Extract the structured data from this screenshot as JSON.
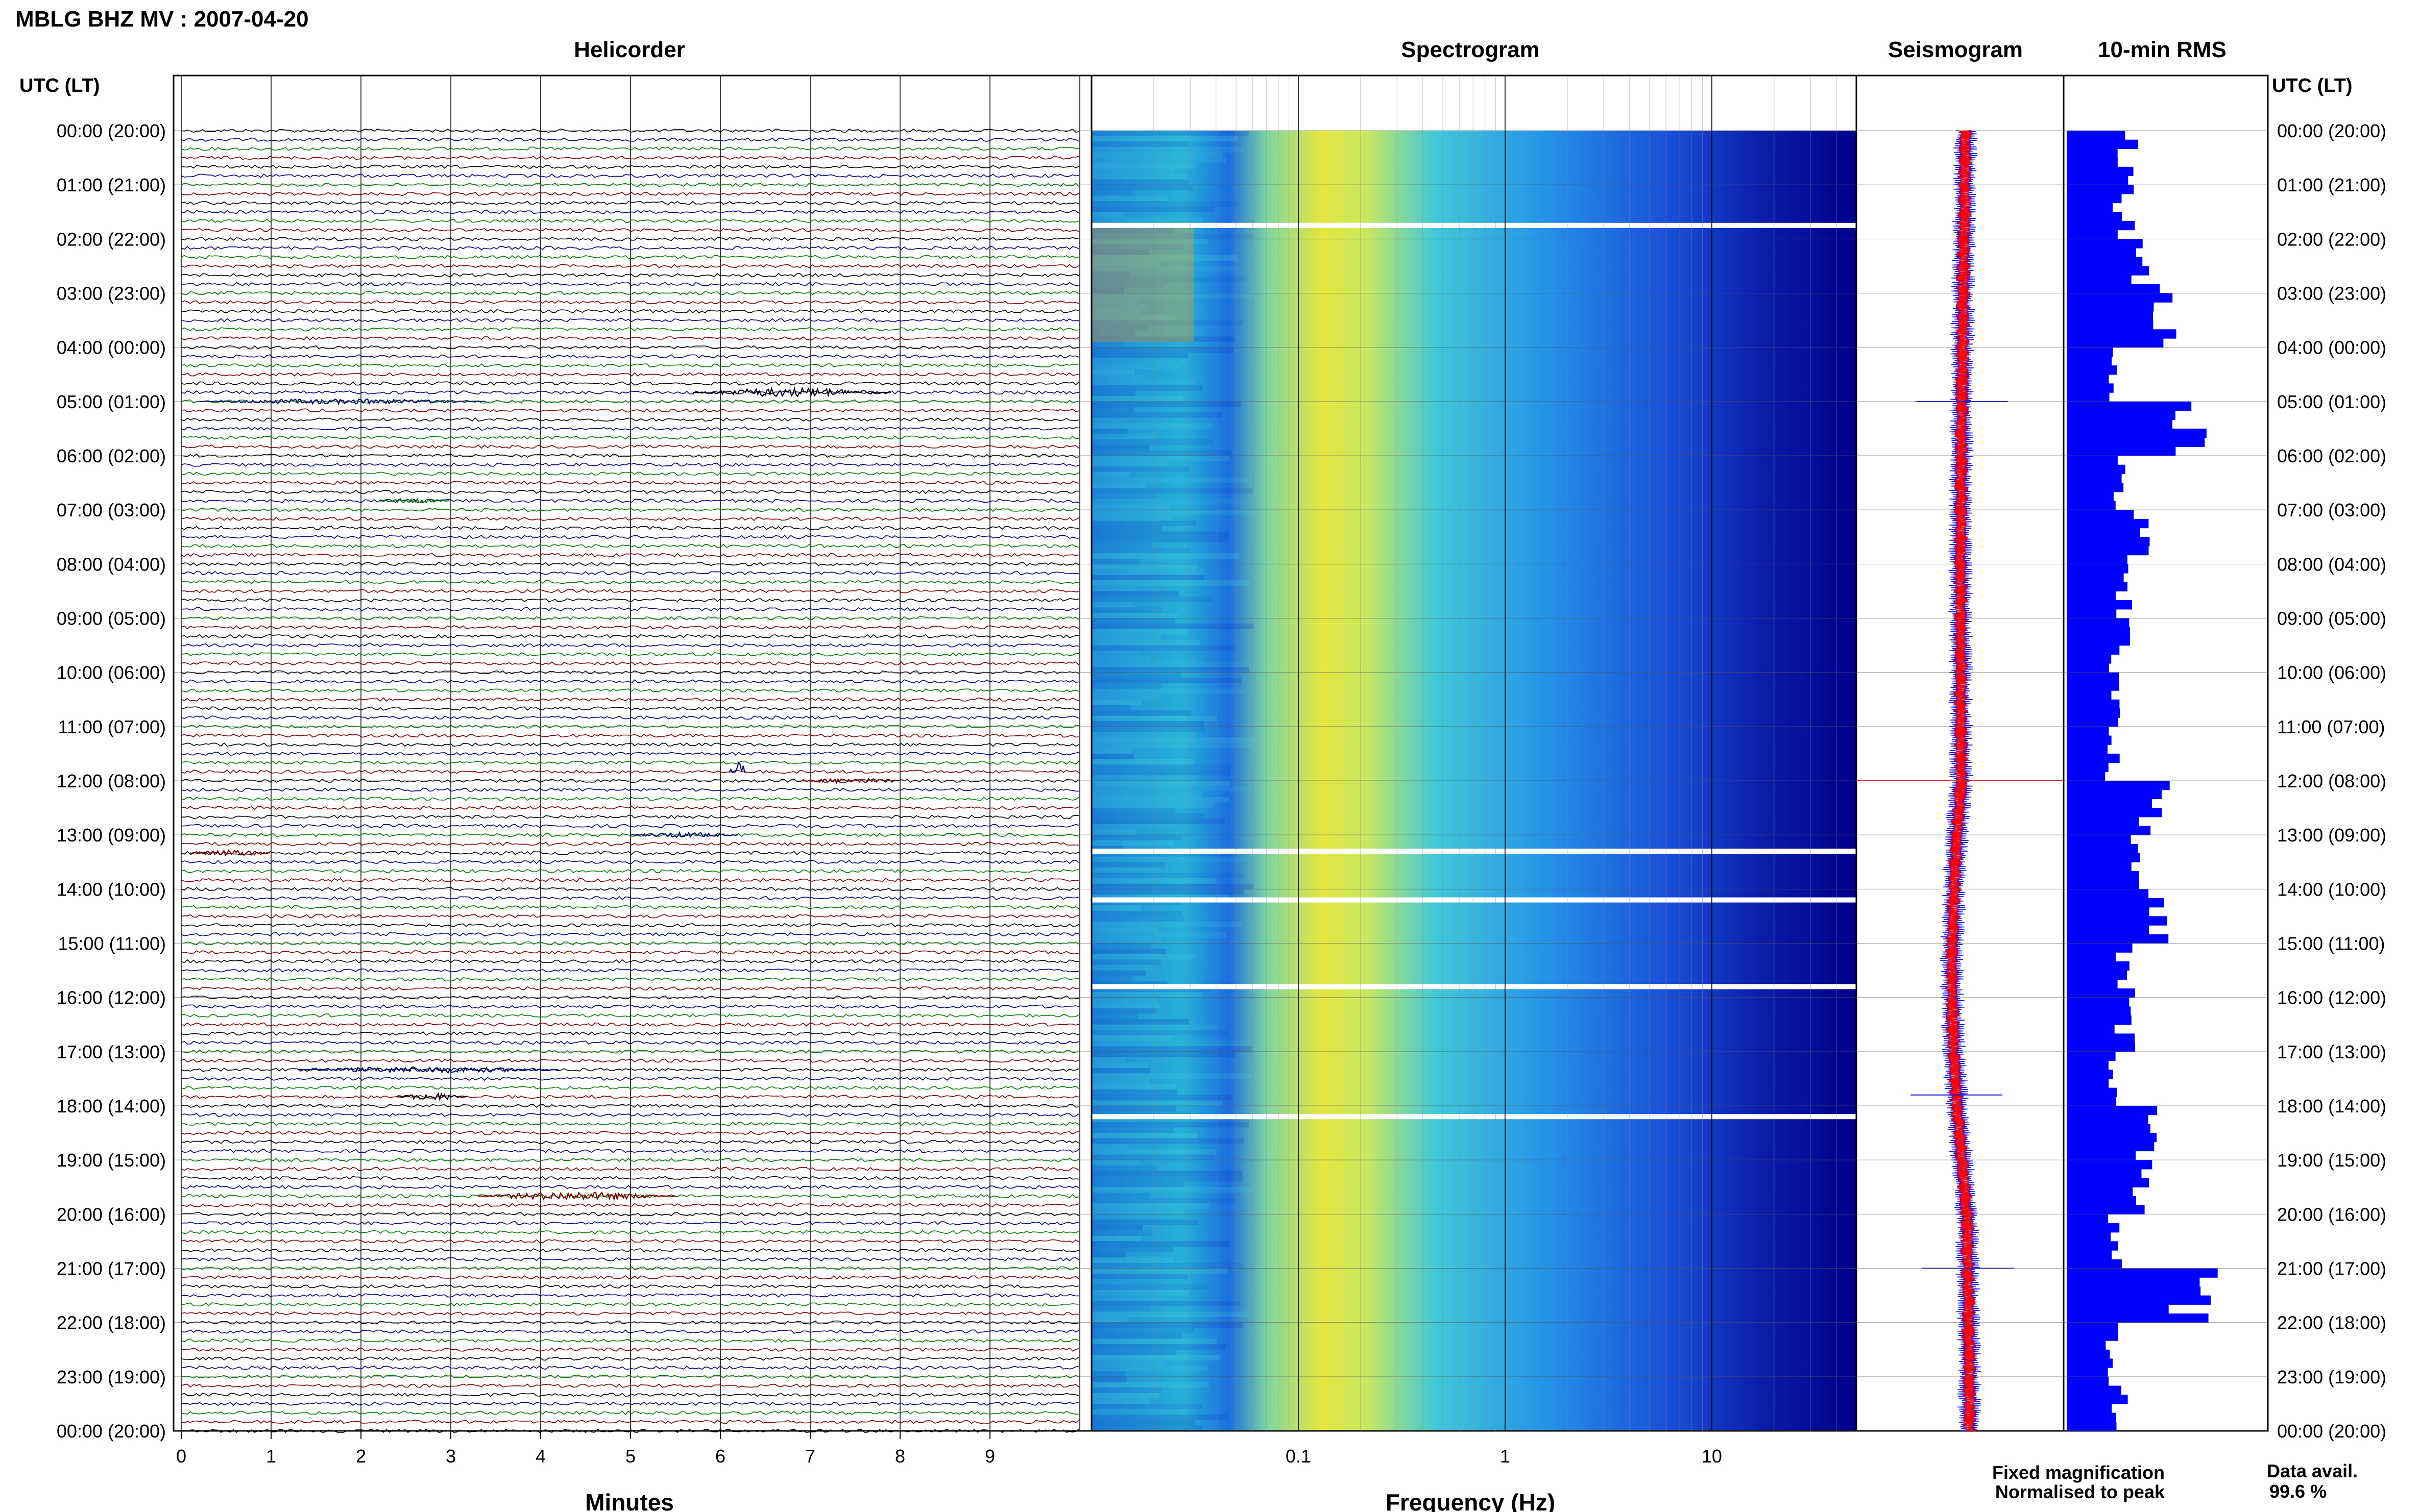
{
  "title": "MBLG BHZ MV : 2007-04-20",
  "utc_header": "UTC (LT)",
  "panels": {
    "helicorder": "Helicorder",
    "spectrogram": "Spectrogram",
    "seismogram": "Seismogram",
    "rms": "10-min RMS"
  },
  "xlabels": {
    "minutes": "Minutes",
    "frequency": "Frequency (Hz)"
  },
  "legend": {
    "fixed": "Fixed magnification",
    "normalised": "Normalised to peak",
    "fixed_color": "#1010e0",
    "normalised_color": "#ff0000"
  },
  "data_avail": {
    "label": "Data avail.",
    "value": "99.6 %"
  },
  "colors": {
    "trace_cycle": [
      "#000000",
      "#000080",
      "#008000",
      "#800000"
    ],
    "spectrogram_low": "#00008c",
    "spectrogram_high": "#ff2000",
    "rms_bar": "#0000ff"
  },
  "chart_data": [
    {
      "type": "helicorder",
      "title": "Helicorder",
      "xlabel": "Minutes",
      "xticks": [
        "0",
        "1",
        "2",
        "3",
        "4",
        "5",
        "6",
        "7",
        "8",
        "9"
      ],
      "xlim": [
        0,
        10
      ],
      "ylabels": [
        "00:00 (20:00)",
        "01:00 (21:00)",
        "02:00 (22:00)",
        "03:00 (23:00)",
        "04:00 (00:00)",
        "05:00 (01:00)",
        "06:00 (02:00)",
        "07:00 (03:00)",
        "08:00 (04:00)",
        "09:00 (05:00)",
        "10:00 (06:00)",
        "11:00 (07:00)",
        "12:00 (08:00)",
        "13:00 (09:00)",
        "14:00 (10:00)",
        "15:00 (11:00)",
        "16:00 (12:00)",
        "17:00 (13:00)",
        "18:00 (14:00)",
        "19:00 (15:00)",
        "20:00 (16:00)",
        "21:00 (17:00)",
        "22:00 (18:00)",
        "23:00 (19:00)",
        "00:00 (20:00)"
      ],
      "rows": 144,
      "events": [
        {
          "row": 29,
          "start": 5.7,
          "end": 7.9,
          "amp": 9,
          "color": "#000000"
        },
        {
          "row": 30,
          "start": 0.2,
          "end": 3.4,
          "amp": 5,
          "color": "#000080"
        },
        {
          "row": 41,
          "start": 2.2,
          "end": 3.0,
          "amp": 5,
          "color": "#008000"
        },
        {
          "row": 71,
          "start": 6.1,
          "end": 6.3,
          "amp": 18,
          "color": "#000080"
        },
        {
          "row": 72,
          "start": 6.9,
          "end": 8.0,
          "amp": 5,
          "color": "#800000"
        },
        {
          "row": 78,
          "start": 5.0,
          "end": 6.2,
          "amp": 5,
          "color": "#000080"
        },
        {
          "row": 80,
          "start": 0.1,
          "end": 1.0,
          "amp": 6,
          "color": "#800000"
        },
        {
          "row": 104,
          "start": 1.3,
          "end": 4.2,
          "amp": 6,
          "color": "#000080"
        },
        {
          "row": 107,
          "start": 2.4,
          "end": 3.2,
          "amp": 7,
          "color": "#000000"
        },
        {
          "row": 118,
          "start": 3.3,
          "end": 5.5,
          "amp": 8,
          "color": "#800000"
        }
      ]
    },
    {
      "type": "heatmap",
      "title": "Spectrogram",
      "xlabel": "Frequency (Hz)",
      "xscale": "log",
      "xlim": [
        0.01,
        50
      ],
      "xticks": [
        {
          "v": 0.1,
          "t": "0.1"
        },
        {
          "v": 1,
          "t": "1"
        },
        {
          "v": 10,
          "t": "10"
        }
      ],
      "gaps_hours": [
        1.75,
        13.3,
        14.2,
        15.8,
        18.2
      ]
    },
    {
      "type": "line",
      "title": "Seismogram",
      "series": [
        {
          "name": "Fixed magnification"
        },
        {
          "name": "Normalised to peak"
        }
      ],
      "spikes_hours": [
        {
          "h": 5.0,
          "amp": 1.0
        },
        {
          "h": 12.0,
          "amp": 2.5
        },
        {
          "h": 17.8,
          "amp": 1.0
        },
        {
          "h": 21.0,
          "amp": 1.0
        }
      ]
    },
    {
      "type": "bar",
      "title": "10-min RMS",
      "x": [
        0,
        1,
        2,
        3,
        4,
        5,
        6,
        7,
        8,
        9,
        10,
        11,
        12,
        13,
        14,
        15,
        16,
        17,
        18,
        19,
        20,
        21,
        22,
        23
      ],
      "values": [
        0.55,
        0.5,
        0.7,
        0.85,
        0.4,
        1.0,
        0.5,
        0.6,
        0.5,
        0.45,
        0.45,
        0.4,
        0.75,
        0.55,
        0.75,
        0.5,
        0.5,
        0.45,
        0.7,
        0.7,
        0.4,
        1.1,
        0.4,
        0.45
      ]
    }
  ]
}
